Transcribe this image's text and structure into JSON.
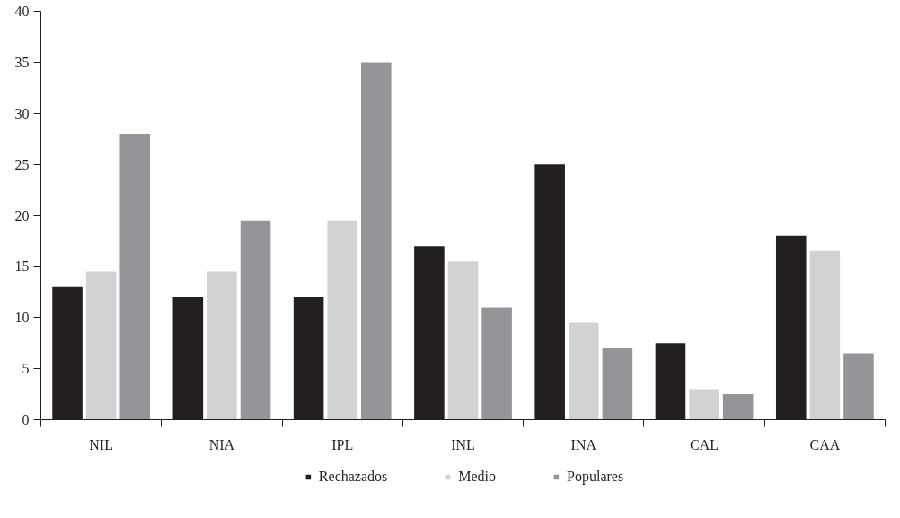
{
  "chart_data": {
    "type": "bar",
    "categories": [
      "NIL",
      "NIA",
      "IPL",
      "INL",
      "INA",
      "CAL",
      "CAA"
    ],
    "series": [
      {
        "name": "Rechazados",
        "color": "#231f20",
        "values": [
          13,
          12,
          12,
          17,
          25,
          7.5,
          18
        ]
      },
      {
        "name": "Medio",
        "color": "#d1d2d4",
        "values": [
          14.5,
          14.5,
          19.5,
          15.5,
          9.5,
          3,
          16.5
        ]
      },
      {
        "name": "Populares",
        "color": "#939598",
        "values": [
          28,
          19.5,
          35,
          11,
          7,
          2.5,
          6.5
        ]
      }
    ],
    "ylim": [
      0,
      40
    ],
    "yticks": [
      0,
      5,
      10,
      15,
      20,
      25,
      30,
      35,
      40
    ],
    "grid": false,
    "legend": "bottom"
  }
}
